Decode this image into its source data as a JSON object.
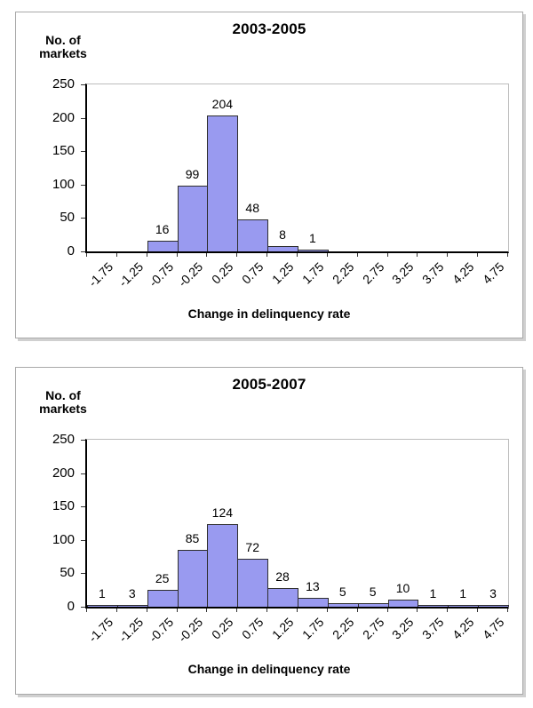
{
  "colors": {
    "bar_fill": "#999af0",
    "bar_border": "#2e2e2e",
    "axis_line": "#000000",
    "plot_border": "#bdbdbd",
    "panel_border": "#a9a9a9",
    "panel_shadow": "#d0d0d0",
    "text": "#000000"
  },
  "chart_data": [
    {
      "type": "bar",
      "title": "2003-2005",
      "ylabel_lines": [
        "No. of",
        "markets"
      ],
      "ylabel": "No. of markets",
      "xlabel": "Change in delinquency rate",
      "categories": [
        "-1.75",
        "-1.25",
        "-0.75",
        "-0.25",
        "0.25",
        "0.75",
        "1.25",
        "1.75",
        "2.25",
        "2.75",
        "3.25",
        "3.75",
        "4.25",
        "4.75"
      ],
      "values": [
        0,
        0,
        16,
        99,
        204,
        48,
        8,
        1,
        0,
        0,
        0,
        0,
        0,
        0
      ],
      "data_labels": [
        "",
        "",
        "16",
        "99",
        "204",
        "48",
        "8",
        "1",
        "",
        "",
        "",
        "",
        "",
        ""
      ],
      "y_ticks": [
        0,
        50,
        100,
        150,
        200,
        250
      ],
      "ylim": [
        0,
        250
      ],
      "grid": false,
      "legend": "none"
    },
    {
      "type": "bar",
      "title": "2005-2007",
      "ylabel_lines": [
        "No. of",
        "markets"
      ],
      "ylabel": "No. of markets",
      "xlabel": "Change in delinquency rate",
      "categories": [
        "-1.75",
        "-1.25",
        "-0.75",
        "-0.25",
        "0.25",
        "0.75",
        "1.25",
        "1.75",
        "2.25",
        "2.75",
        "3.25",
        "3.75",
        "4.25",
        "4.75"
      ],
      "values": [
        1,
        3,
        25,
        85,
        124,
        72,
        28,
        13,
        5,
        5,
        10,
        1,
        1,
        3
      ],
      "data_labels": [
        "1",
        "3",
        "25",
        "85",
        "124",
        "72",
        "28",
        "13",
        "5",
        "5",
        "10",
        "1",
        "1",
        "3"
      ],
      "y_ticks": [
        0,
        50,
        100,
        150,
        200,
        250
      ],
      "ylim": [
        0,
        250
      ],
      "grid": false,
      "legend": "none"
    }
  ]
}
